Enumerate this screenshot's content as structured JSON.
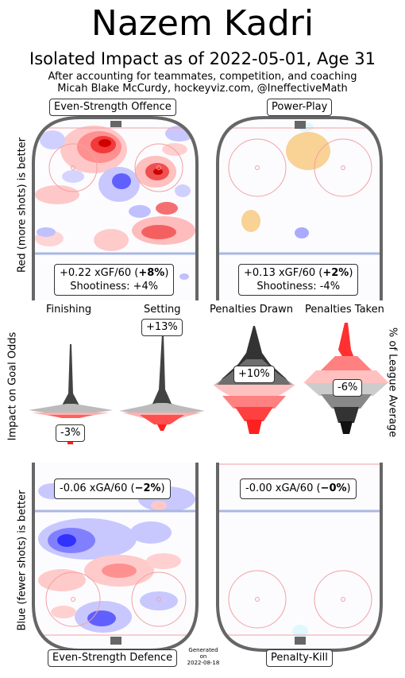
{
  "header": {
    "title": "Nazem Kadri",
    "subtitle": "Isolated Impact as of 2022-05-01, Age 31",
    "caption_line1": "After accounting for teammates, competition, and coaching",
    "caption_line2": "Micah Blake McCurdy, hockeyviz.com, @IneffectiveMath"
  },
  "colors": {
    "offence_red": "#e8101a",
    "defence_blue": "#3232ff",
    "pp_orange": "#f7c77a",
    "rink_gray": "#666666",
    "blue_line": "#aab8e0",
    "red_line": "#f4a0a0"
  },
  "panels": {
    "es_offence": {
      "label": "Even-Strength Offence",
      "stat_line": "+0.22 xGF/60 (+8%)",
      "stat_pre": "+0.22 xGF/60 (",
      "stat_bold": "+8%",
      "stat_post": ")",
      "shootiness": "Shootiness: +4%"
    },
    "power_play": {
      "label": "Power-Play",
      "stat_line": "+0.13 xGF/60 (+2%)",
      "stat_pre": "+0.13 xGF/60 (",
      "stat_bold": "+2%",
      "stat_post": ")",
      "shootiness": "Shootiness: -4%"
    },
    "es_defence": {
      "label": "Even-Strength Defence",
      "stat_pre": "-0.06 xGA/60 (",
      "stat_bold": "−2%",
      "stat_post": ")"
    },
    "penalty_kill": {
      "label": "Penalty-Kill",
      "stat_pre": "-0.00 xGA/60 (",
      "stat_bold": "−0%",
      "stat_post": ")"
    }
  },
  "side_labels": {
    "left_top": "Red (more shots) is better",
    "left_mid": "Impact on Goal Odds",
    "left_bottom": "Blue (fewer shots) is better",
    "right_mid": "% of League Average"
  },
  "generated": {
    "line1": "Generated",
    "line2": "on",
    "line3": "2022-08-18"
  },
  "chart_data": {
    "type": "violin",
    "title": "Impact on Goal Odds",
    "ylabel": "% of League Average",
    "categories": [
      "Finishing",
      "Setting",
      "Penalties Drawn",
      "Penalties Taken"
    ],
    "series": [
      {
        "name": "Finishing",
        "value_label": "-3%",
        "value": -3
      },
      {
        "name": "Setting",
        "value_label": "+13%",
        "value": 13
      },
      {
        "name": "Penalties Drawn",
        "value_label": "+10%",
        "value": 10
      },
      {
        "name": "Penalties Taken",
        "value_label": "-6%",
        "value": -6
      }
    ]
  }
}
